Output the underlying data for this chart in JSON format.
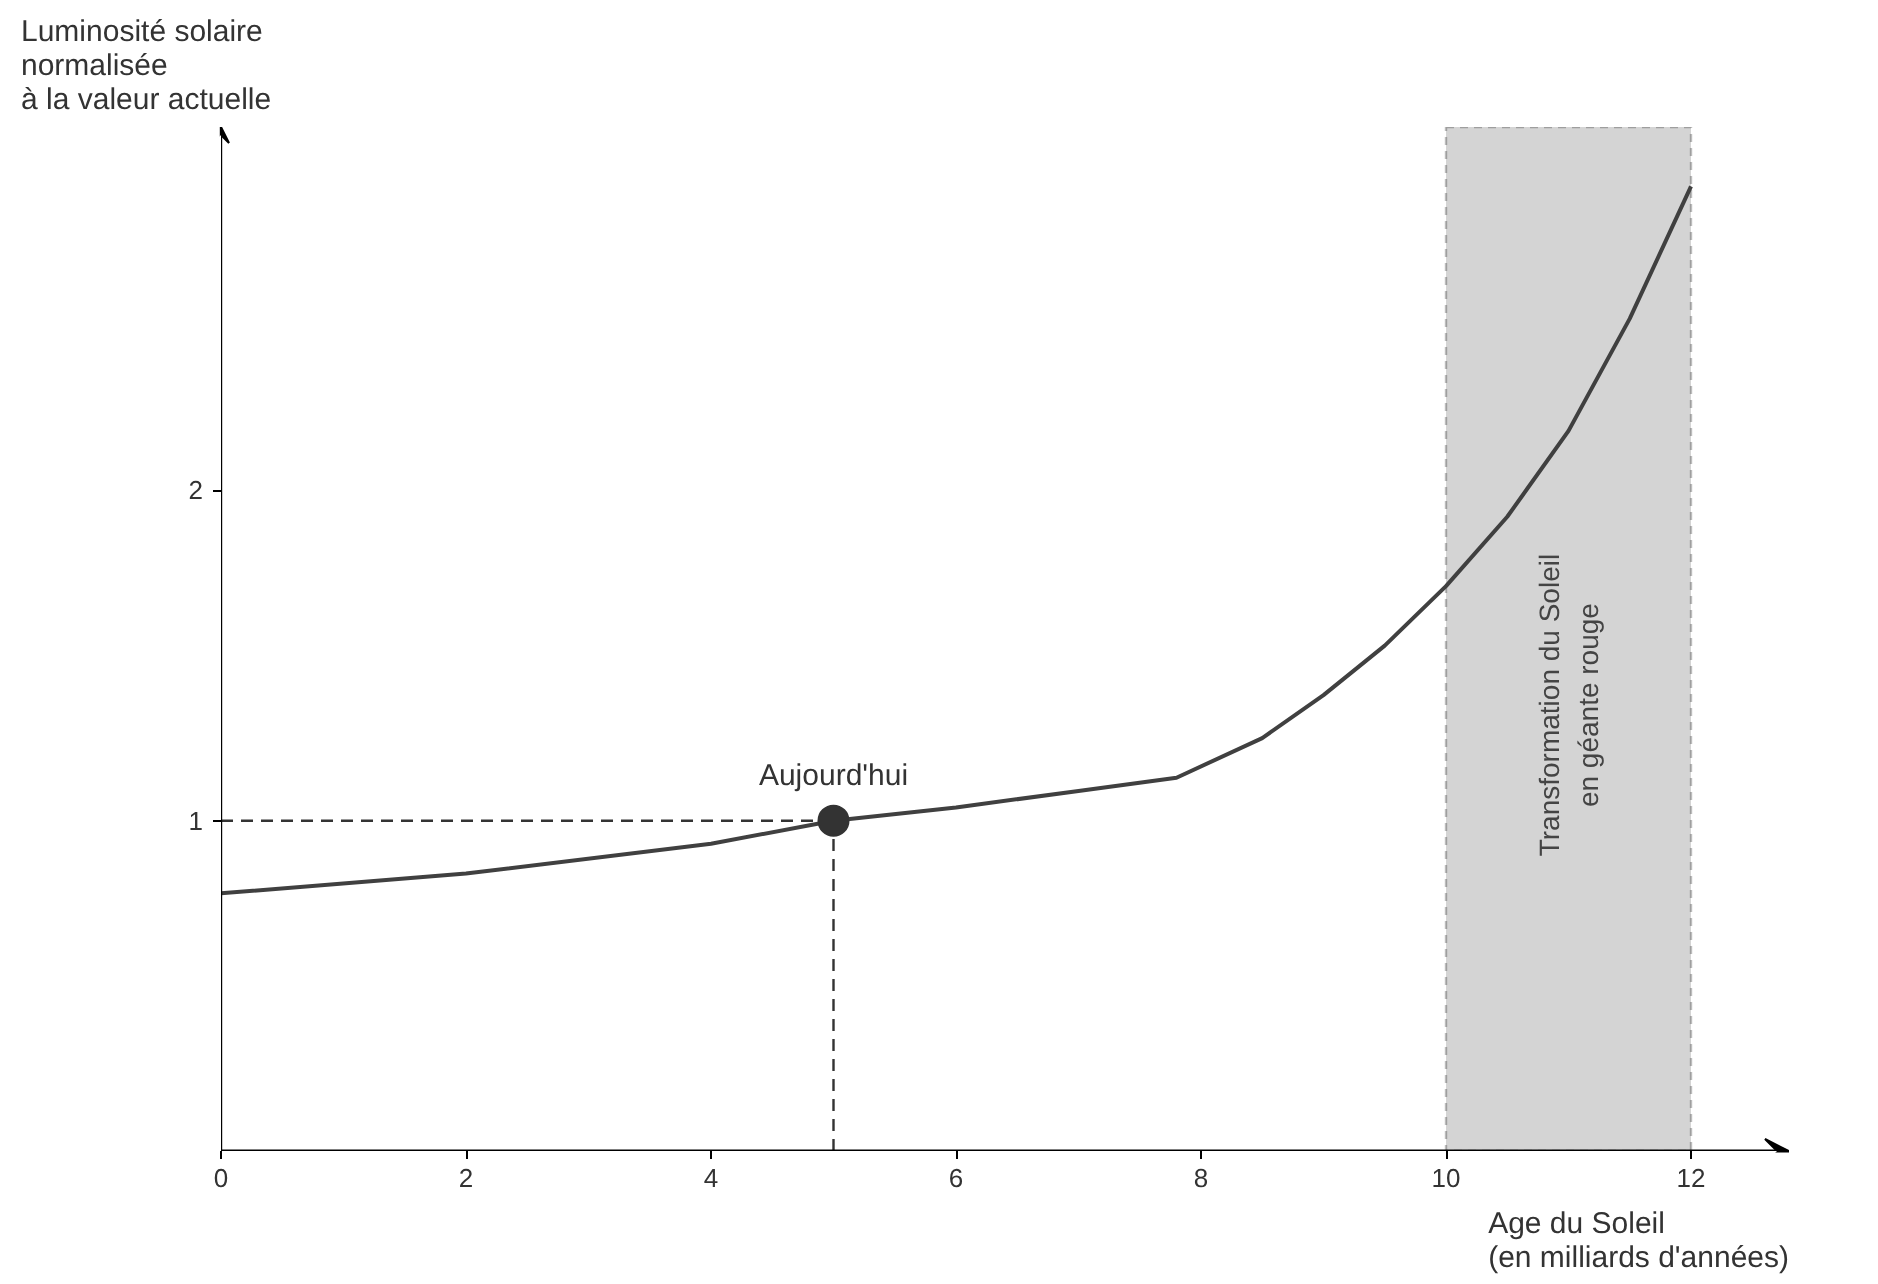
{
  "chart_data": {
    "type": "line",
    "xlabel": "Age du Soleil\n(en milliards d'années)",
    "ylabel": "Luminosité solaire\nnormalisée\nà la valeur actuelle",
    "xlim": [
      0,
      12.8
    ],
    "ylim": [
      0,
      3.1
    ],
    "xticks": [
      0,
      2,
      4,
      6,
      8,
      10,
      12
    ],
    "yticks": [
      1,
      2
    ],
    "grid": false,
    "series": [
      {
        "color": "#404040",
        "marker": "none",
        "line_style": "solid",
        "x": [
          0,
          2,
          4,
          5,
          6,
          7,
          7.8,
          8.5,
          9,
          9.5,
          10,
          10.5,
          11,
          11.5,
          12
        ],
        "values": [
          0.78,
          0.84,
          0.93,
          1.0,
          1.04,
          1.09,
          1.13,
          1.25,
          1.38,
          1.53,
          1.71,
          1.92,
          2.18,
          2.52,
          2.92
        ]
      },
      {
        "color": "#333333",
        "marker": "none",
        "line_style": "dashed",
        "x": [
          0,
          5
        ],
        "values": [
          1,
          1
        ]
      },
      {
        "color": "#333333",
        "marker": "none",
        "line_style": "dashed",
        "x": [
          5,
          5
        ],
        "values": [
          0,
          1
        ]
      },
      {
        "type": "scatter",
        "color": "#333333",
        "marker": "circle",
        "x": [
          5
        ],
        "values": [
          1
        ]
      }
    ],
    "bands": [
      {
        "axis": "x",
        "from": 10,
        "to": 12,
        "label": "Transformation du Soleil\nen géante rouge",
        "color": "#d4d4d4"
      }
    ],
    "annotations": [
      {
        "text": "Aujourd'hui",
        "x": 5,
        "y": 1
      }
    ]
  }
}
